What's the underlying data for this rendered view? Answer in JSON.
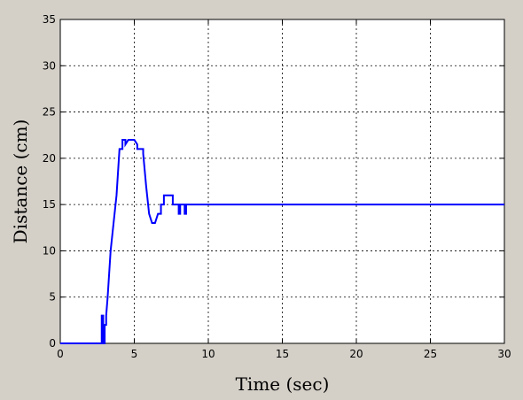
{
  "chart_data": {
    "type": "line",
    "title": "",
    "xlabel": "Time (sec)",
    "ylabel": "Distance (cm)",
    "xlim": [
      0,
      30
    ],
    "ylim": [
      0,
      35
    ],
    "xticks": [
      0,
      5,
      10,
      15,
      20,
      25,
      30
    ],
    "yticks": [
      0,
      5,
      10,
      15,
      20,
      25,
      30,
      35
    ],
    "grid": true,
    "legend": "none",
    "colors": {
      "figure_background": "#d4d0c8",
      "plot_background": "#ffffff",
      "line": "#0000ff",
      "grid": "#000000"
    },
    "series": [
      {
        "x": [
          0,
          2.8,
          2.8,
          2.9,
          2.9,
          3.0,
          3.0,
          3.1,
          3.1,
          3.2,
          3.4,
          3.6,
          3.6,
          3.8,
          4.0,
          4.2,
          4.2,
          4.4,
          4.4,
          4.6,
          4.8,
          5.0,
          5.2,
          5.2,
          5.6,
          5.6,
          5.8,
          6.0,
          6.2,
          6.4,
          6.6,
          6.8,
          6.8,
          7.0,
          7.0,
          7.2,
          7.6,
          7.6,
          8.0,
          8.0,
          8.1,
          8.1,
          8.2,
          8.2,
          8.4,
          8.4,
          8.5,
          8.5,
          8.6,
          8.6,
          30
        ],
        "y": [
          0,
          0,
          3,
          3,
          0,
          0,
          2,
          2,
          3,
          5,
          10,
          13,
          13,
          16,
          21,
          21,
          22,
          22,
          21.5,
          22,
          22,
          22,
          21.5,
          21,
          21,
          20.5,
          17,
          14,
          13,
          13,
          14,
          14,
          15,
          15,
          16,
          16,
          16,
          15,
          15,
          14,
          14,
          15,
          15,
          15,
          15,
          14,
          14,
          15,
          15,
          15,
          15
        ]
      }
    ]
  }
}
